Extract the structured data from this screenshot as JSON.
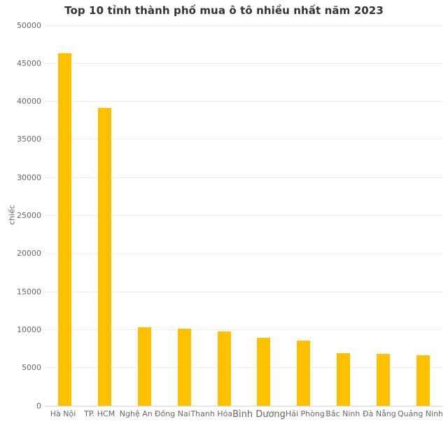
{
  "chart_data": {
    "type": "bar",
    "title": "Top 10 tỉnh thành phố mua ô tô nhiều nhất năm 2023",
    "xlabel": "",
    "ylabel": "chiếc",
    "categories": [
      "Hà Nội",
      "TP. HCM",
      "Nghệ An",
      "Đồng Nai",
      "Thanh Hóa",
      "Bình Dương",
      "Hải Phòng",
      "Bắc Ninh",
      "Đà Nẵng",
      "Quảng Ninh"
    ],
    "values": [
      46300,
      39100,
      10300,
      10100,
      9800,
      8900,
      8600,
      6900,
      6800,
      6600
    ],
    "ylim": [
      0,
      50000
    ],
    "yticks": [
      0,
      5000,
      10000,
      15000,
      20000,
      25000,
      30000,
      35000,
      40000,
      45000,
      50000
    ],
    "grid": true,
    "legend_position": "none",
    "bar_color": "#FFC000",
    "emphasized_category": "Bình Dương"
  },
  "colors": {
    "background": "#FFFFFF",
    "bar": "#FFC000",
    "gridline": "#ECECEC",
    "axis_line": "#D6D6D6",
    "tick_text": "#666666",
    "title_text": "#333333"
  }
}
